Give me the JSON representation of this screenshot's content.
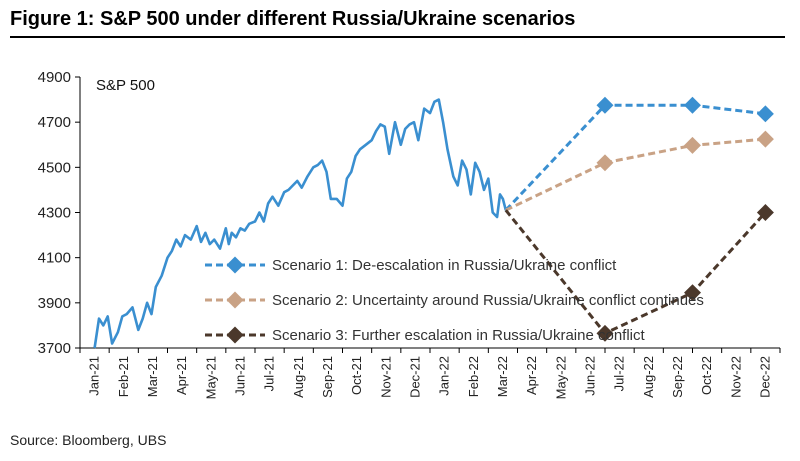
{
  "title": "Figure 1: S&P 500 under different Russia/Ukraine scenarios",
  "source": "Source: Bloomberg, UBS",
  "chart_data": {
    "type": "line",
    "annotation": "S&P 500",
    "ylim": [
      3700,
      4900
    ],
    "yticks": [
      "3700",
      "3900",
      "4100",
      "4300",
      "4500",
      "4700",
      "4900"
    ],
    "xticks": [
      "Jan-21",
      "Feb-21",
      "Mar-21",
      "Apr-21",
      "May-21",
      "Jun-21",
      "Jul-21",
      "Aug-21",
      "Sep-21",
      "Oct-21",
      "Nov-21",
      "Dec-21",
      "Jan-22",
      "Feb-22",
      "Mar-22",
      "Apr-22",
      "May-22",
      "Jun-22",
      "Jul-22",
      "Aug-22",
      "Sep-22",
      "Oct-22",
      "Nov-22",
      "Dec-22"
    ],
    "history": {
      "color": "#3a8fd0",
      "x": [
        0,
        0.15,
        0.3,
        0.45,
        0.6,
        0.8,
        0.95,
        1.1,
        1.3,
        1.5,
        1.65,
        1.8,
        1.95,
        2.1,
        2.3,
        2.5,
        2.65,
        2.8,
        2.95,
        3.1,
        3.3,
        3.5,
        3.65,
        3.8,
        3.95,
        4.1,
        4.3,
        4.5,
        4.6,
        4.7,
        4.85,
        5.0,
        5.15,
        5.3,
        5.5,
        5.65,
        5.8,
        5.95,
        6.1,
        6.3,
        6.5,
        6.65,
        6.8,
        6.95,
        7.1,
        7.3,
        7.5,
        7.65,
        7.8,
        7.95,
        8.1,
        8.3,
        8.5,
        8.65,
        8.8,
        8.95,
        9.1,
        9.3,
        9.5,
        9.65,
        9.8,
        9.95,
        10.1,
        10.3,
        10.5,
        10.65,
        10.8,
        10.95,
        11.1,
        11.3,
        11.5,
        11.65,
        11.8,
        11.95,
        12.1,
        12.3,
        12.45,
        12.6,
        12.75,
        12.9,
        13.05,
        13.2,
        13.35,
        13.5,
        13.65,
        13.8,
        13.9,
        14.0,
        14.1
      ],
      "values": [
        3700,
        3830,
        3800,
        3840,
        3720,
        3770,
        3840,
        3850,
        3880,
        3780,
        3830,
        3900,
        3850,
        3970,
        4020,
        4100,
        4130,
        4180,
        4150,
        4200,
        4180,
        4240,
        4170,
        4210,
        4160,
        4180,
        4140,
        4230,
        4160,
        4210,
        4190,
        4230,
        4220,
        4250,
        4260,
        4300,
        4260,
        4340,
        4370,
        4330,
        4390,
        4400,
        4420,
        4440,
        4410,
        4460,
        4500,
        4510,
        4530,
        4480,
        4360,
        4360,
        4330,
        4450,
        4480,
        4550,
        4580,
        4600,
        4620,
        4660,
        4690,
        4680,
        4560,
        4700,
        4600,
        4670,
        4690,
        4700,
        4620,
        4760,
        4740,
        4790,
        4800,
        4700,
        4580,
        4460,
        4420,
        4530,
        4490,
        4380,
        4520,
        4480,
        4400,
        4450,
        4300,
        4280,
        4380,
        4360,
        4310
      ]
    },
    "series": [
      {
        "name": "Scenario 1: De-escalation in Russia/Ukraine conflict",
        "color": "#3a8fd0",
        "x": [
          14.1,
          17.5,
          20.5,
          23.0
        ],
        "values": [
          4310,
          4775,
          4775,
          4737
        ]
      },
      {
        "name": "Scenario 2: Uncertainty around Russia/Ukraine conflict continues",
        "color": "#c9a285",
        "x": [
          14.1,
          17.5,
          20.5,
          23.0
        ],
        "values": [
          4310,
          4520,
          4597,
          4625
        ]
      },
      {
        "name": "Scenario 3: Further escalation in Russia/Ukraine conflict",
        "color": "#4b382b",
        "x": [
          14.1,
          17.5,
          20.5,
          23.0
        ],
        "values": [
          4310,
          3765,
          3945,
          4300
        ]
      }
    ]
  }
}
